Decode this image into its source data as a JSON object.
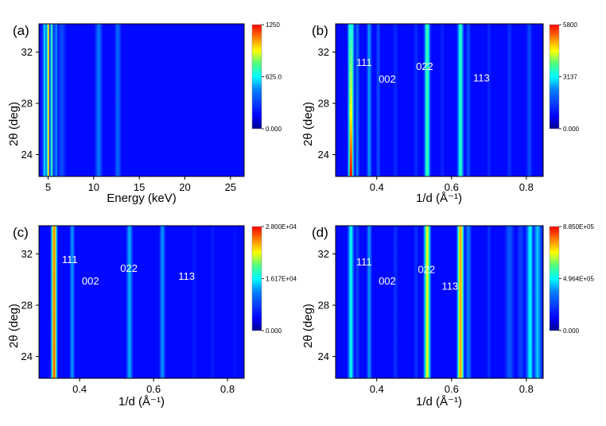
{
  "figure": {
    "colormap_stops": [
      "#00008f",
      "#0000ff",
      "#0a40ff",
      "#0080ff",
      "#00ffff",
      "#50ff80",
      "#ffff00",
      "#ff8000",
      "#ff0000"
    ]
  },
  "chart_data": [
    {
      "type": "heatmap",
      "panel_label": "(a)",
      "xlabel": "Energy (keV)",
      "ylabel": "2θ (deg)",
      "xlim": [
        4,
        26.5
      ],
      "ylim": [
        22.3,
        34.2
      ],
      "xticks": [
        5,
        10,
        15,
        20,
        25
      ],
      "yticks": [
        24,
        28,
        32
      ],
      "colorbar": {
        "min": 0,
        "max": 1250,
        "tick_labels": [
          "1250",
          "625.0",
          "0.000"
        ]
      },
      "bands": [
        {
          "x": 4.7,
          "width": 0.18,
          "intensity_top": 0.5,
          "intensity_bottom": 0.5
        },
        {
          "x": 5.15,
          "width": 0.2,
          "intensity_top": 0.85,
          "intensity_bottom": 0.85
        },
        {
          "x": 5.5,
          "width": 0.17,
          "intensity_top": 0.62,
          "intensity_bottom": 0.62
        },
        {
          "x": 5.95,
          "width": 0.2,
          "intensity_top": 0.38,
          "intensity_bottom": 0.38
        },
        {
          "x": 6.5,
          "width": 0.22,
          "intensity_top": 0.27,
          "intensity_bottom": 0.27
        },
        {
          "x": 10.55,
          "width": 0.2,
          "intensity_top": 0.36,
          "intensity_bottom": 0.36
        },
        {
          "x": 12.65,
          "width": 0.18,
          "intensity_top": 0.33,
          "intensity_bottom": 0.33
        }
      ],
      "annotations": []
    },
    {
      "type": "heatmap",
      "panel_label": "(b)",
      "xlabel": "1/d (Å⁻¹)",
      "ylabel": "2θ (deg)",
      "xlim": [
        0.29,
        0.845
      ],
      "ylim": [
        22.3,
        34.2
      ],
      "xticks": [
        0.4,
        0.6,
        0.8
      ],
      "yticks": [
        24,
        28,
        32
      ],
      "colorbar": {
        "min": 0,
        "max": 5800,
        "tick_labels": [
          "5800",
          "3137",
          "0.000"
        ]
      },
      "bands": [
        {
          "x": 0.331,
          "width": 0.0045,
          "intensity_top": 0.5,
          "intensity_bottom": 1.0
        },
        {
          "x": 0.348,
          "width": 0.003,
          "intensity_top": 0.3,
          "intensity_bottom": 0.38
        },
        {
          "x": 0.38,
          "width": 0.0035,
          "intensity_top": 0.4,
          "intensity_bottom": 0.42
        },
        {
          "x": 0.404,
          "width": 0.003,
          "intensity_top": 0.27,
          "intensity_bottom": 0.27
        },
        {
          "x": 0.45,
          "width": 0.003,
          "intensity_top": 0.22,
          "intensity_bottom": 0.2
        },
        {
          "x": 0.505,
          "width": 0.003,
          "intensity_top": 0.22,
          "intensity_bottom": 0.2
        },
        {
          "x": 0.535,
          "width": 0.0045,
          "intensity_top": 0.6,
          "intensity_bottom": 0.6
        },
        {
          "x": 0.575,
          "width": 0.003,
          "intensity_top": 0.2,
          "intensity_bottom": 0.2
        },
        {
          "x": 0.624,
          "width": 0.0045,
          "intensity_top": 0.58,
          "intensity_bottom": 0.58
        },
        {
          "x": 0.645,
          "width": 0.003,
          "intensity_top": 0.28,
          "intensity_bottom": 0.28
        },
        {
          "x": 0.7,
          "width": 0.003,
          "intensity_top": 0.2,
          "intensity_bottom": 0.2
        },
        {
          "x": 0.755,
          "width": 0.003,
          "intensity_top": 0.22,
          "intensity_bottom": 0.22
        },
        {
          "x": 0.808,
          "width": 0.004,
          "intensity_top": 0.26,
          "intensity_bottom": 0.26
        }
      ],
      "annotations": [
        {
          "text": "111",
          "x": 0.345,
          "y": 30.9
        },
        {
          "text": "002",
          "x": 0.405,
          "y": 29.6
        },
        {
          "text": "022",
          "x": 0.505,
          "y": 30.6
        },
        {
          "text": "113",
          "x": 0.658,
          "y": 29.7
        }
      ]
    },
    {
      "type": "heatmap",
      "panel_label": "(c)",
      "xlabel": "1/d (Å⁻¹)",
      "ylabel": "2θ (deg)",
      "xlim": [
        0.29,
        0.845
      ],
      "ylim": [
        22.3,
        34.2
      ],
      "xticks": [
        0.4,
        0.6,
        0.8
      ],
      "yticks": [
        24,
        28,
        32
      ],
      "colorbar": {
        "min": 0,
        "max": 28000,
        "tick_labels": [
          "2.800E+04",
          "1.617E+04",
          "0.000"
        ]
      },
      "bands": [
        {
          "x": 0.331,
          "width": 0.0045,
          "intensity_top": 0.85,
          "intensity_bottom": 0.9
        },
        {
          "x": 0.38,
          "width": 0.0035,
          "intensity_top": 0.4,
          "intensity_bottom": 0.4
        },
        {
          "x": 0.535,
          "width": 0.0045,
          "intensity_top": 0.43,
          "intensity_bottom": 0.43
        },
        {
          "x": 0.624,
          "width": 0.004,
          "intensity_top": 0.4,
          "intensity_bottom": 0.4
        },
        {
          "x": 0.71,
          "width": 0.003,
          "intensity_top": 0.18,
          "intensity_bottom": 0.18
        },
        {
          "x": 0.76,
          "width": 0.003,
          "intensity_top": 0.18,
          "intensity_bottom": 0.18
        },
        {
          "x": 0.82,
          "width": 0.003,
          "intensity_top": 0.16,
          "intensity_bottom": 0.16
        }
      ],
      "annotations": [
        {
          "text": "111",
          "x": 0.352,
          "y": 31.3
        },
        {
          "text": "002",
          "x": 0.406,
          "y": 29.6
        },
        {
          "text": "022",
          "x": 0.51,
          "y": 30.6
        },
        {
          "text": "113",
          "x": 0.667,
          "y": 30.0
        }
      ]
    },
    {
      "type": "heatmap",
      "panel_label": "(d)",
      "xlabel": "1/d (Å⁻¹)",
      "ylabel": "2θ (deg)",
      "xlim": [
        0.29,
        0.845
      ],
      "ylim": [
        22.3,
        34.2
      ],
      "xticks": [
        0.4,
        0.6,
        0.8
      ],
      "yticks": [
        24,
        28,
        32
      ],
      "colorbar": {
        "min": 0,
        "max": 885000,
        "tick_labels": [
          "8.850E+05",
          "4.964E+05",
          "0.000"
        ]
      },
      "bands": [
        {
          "x": 0.331,
          "width": 0.0045,
          "intensity_top": 0.52,
          "intensity_bottom": 0.52
        },
        {
          "x": 0.348,
          "width": 0.003,
          "intensity_top": 0.25,
          "intensity_bottom": 0.25
        },
        {
          "x": 0.38,
          "width": 0.0035,
          "intensity_top": 0.4,
          "intensity_bottom": 0.4
        },
        {
          "x": 0.45,
          "width": 0.003,
          "intensity_top": 0.22,
          "intensity_bottom": 0.22
        },
        {
          "x": 0.505,
          "width": 0.003,
          "intensity_top": 0.22,
          "intensity_bottom": 0.22
        },
        {
          "x": 0.535,
          "width": 0.005,
          "intensity_top": 0.75,
          "intensity_bottom": 0.75
        },
        {
          "x": 0.624,
          "width": 0.005,
          "intensity_top": 0.85,
          "intensity_bottom": 0.85
        },
        {
          "x": 0.645,
          "width": 0.004,
          "intensity_top": 0.38,
          "intensity_bottom": 0.38
        },
        {
          "x": 0.7,
          "width": 0.003,
          "intensity_top": 0.22,
          "intensity_bottom": 0.22
        },
        {
          "x": 0.755,
          "width": 0.006,
          "intensity_top": 0.3,
          "intensity_bottom": 0.3
        },
        {
          "x": 0.785,
          "width": 0.005,
          "intensity_top": 0.25,
          "intensity_bottom": 0.25
        },
        {
          "x": 0.81,
          "width": 0.006,
          "intensity_top": 0.5,
          "intensity_bottom": 0.5
        },
        {
          "x": 0.83,
          "width": 0.006,
          "intensity_top": 0.45,
          "intensity_bottom": 0.45
        }
      ],
      "annotations": [
        {
          "text": "111",
          "x": 0.345,
          "y": 31.1
        },
        {
          "text": "002",
          "x": 0.405,
          "y": 29.6
        },
        {
          "text": "022",
          "x": 0.51,
          "y": 30.5
        },
        {
          "text": "113",
          "x": 0.574,
          "y": 29.2
        }
      ]
    }
  ]
}
